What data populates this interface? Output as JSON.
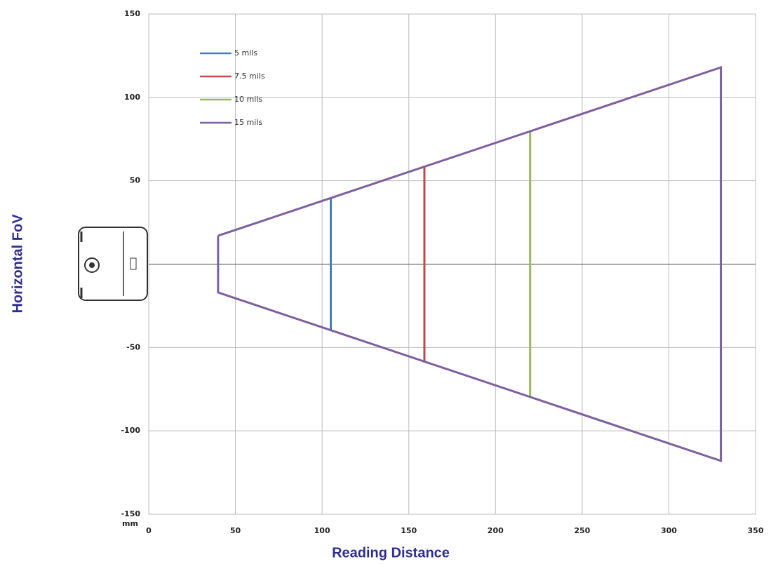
{
  "chart_data": {
    "type": "line",
    "x_label": "Reading Distance",
    "y_label": "Horizontal FoV",
    "unit": "mm",
    "xlim": [
      0,
      350
    ],
    "ylim": [
      -150,
      150
    ],
    "xticks": [
      0,
      50,
      100,
      150,
      200,
      250,
      300,
      350
    ],
    "yticks": [
      -150,
      -100,
      -50,
      50,
      100,
      150
    ],
    "grid": true,
    "legend": "upper left",
    "series": [
      {
        "name": "5 mils",
        "color": "#4a7ebb",
        "x": [
          105,
          105
        ],
        "values": [
          40,
          -40
        ]
      },
      {
        "name": "7.5 mils",
        "color": "#be4b48",
        "x": [
          159,
          159
        ],
        "values": [
          59,
          -59
        ]
      },
      {
        "name": "10 mils",
        "color": "#98b954",
        "x": [
          220,
          220
        ],
        "values": [
          80,
          -80
        ]
      },
      {
        "name": "15 mils",
        "color": "#7d60a0",
        "x": [
          40,
          330,
          330,
          40,
          40
        ],
        "values": [
          17,
          118,
          -118,
          -17,
          17
        ]
      }
    ]
  }
}
